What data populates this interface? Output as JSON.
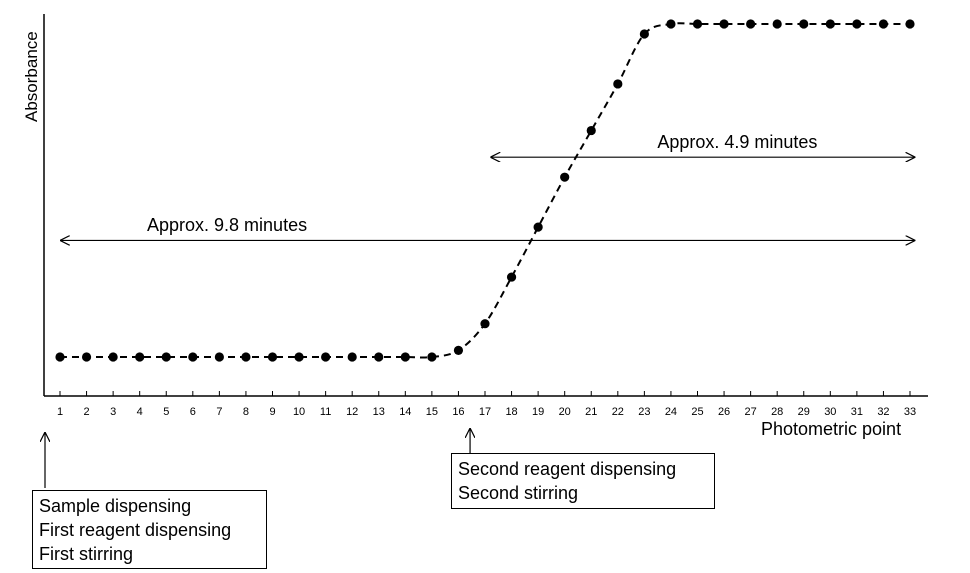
{
  "chart_data": {
    "type": "line",
    "xlabel": "Photometric point",
    "ylabel": "Absorbance",
    "x": [
      1,
      2,
      3,
      4,
      5,
      6,
      7,
      8,
      9,
      10,
      11,
      12,
      13,
      14,
      15,
      16,
      17,
      18,
      19,
      20,
      21,
      22,
      23,
      24,
      25,
      26,
      27,
      28,
      29,
      30,
      31,
      32,
      33
    ],
    "series": [
      {
        "values": [
          0.1,
          0.1,
          0.1,
          0.1,
          0.1,
          0.1,
          0.1,
          0.1,
          0.1,
          0.1,
          0.1,
          0.1,
          0.1,
          0.1,
          0.1,
          0.12,
          0.2,
          0.34,
          0.49,
          0.64,
          0.78,
          0.92,
          1.07,
          1.1,
          1.1,
          1.1,
          1.1,
          1.1,
          1.1,
          1.1,
          1.1,
          1.1,
          1.1
        ],
        "color": "#000000",
        "line_style": "dashed",
        "marker": "circle"
      }
    ],
    "xlim": [
      1,
      33
    ],
    "ylim": [
      0,
      1.15
    ],
    "y_ticks_shown": false,
    "grid": false,
    "annotations": [
      {
        "type": "double-arrow",
        "text": "Approx. 4.9 minutes",
        "x_from": 17.2,
        "x_to": 33.2,
        "y": 0.7
      },
      {
        "type": "double-arrow",
        "text": "Approx. 9.8 minutes",
        "x_from": 1.0,
        "x_to": 33.2,
        "y": 0.45
      }
    ],
    "markers": [
      {
        "x": 1,
        "lines": [
          "Sample dispensing",
          "First reagent dispensing",
          "First stirring"
        ]
      },
      {
        "x": 16.4,
        "lines": [
          "Second reagent dispensing",
          "Second stirring"
        ]
      }
    ]
  }
}
